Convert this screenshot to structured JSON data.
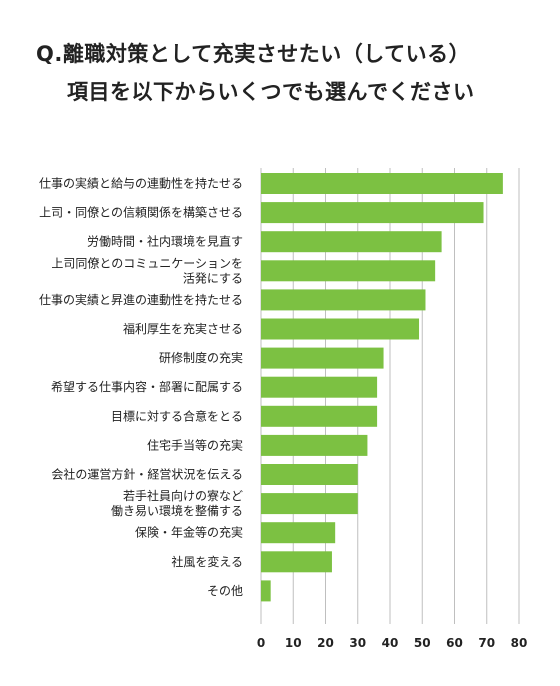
{
  "title": {
    "line1": "Q.離職対策として充実させたい（している）",
    "line2": "項目を以下からいくつでも選んでください"
  },
  "chart_data": {
    "type": "bar",
    "orientation": "horizontal",
    "categories": [
      [
        "仕事の実績と給与の連動性を持たせる"
      ],
      [
        "上司・同僚との信頼関係を構築させる"
      ],
      [
        "労働時間・社内環境を見直す"
      ],
      [
        "上司同僚とのコミュニケーションを",
        "活発にする"
      ],
      [
        "仕事の実績と昇進の連動性を持たせる"
      ],
      [
        "福利厚生を充実させる"
      ],
      [
        "研修制度の充実"
      ],
      [
        "希望する仕事内容・部署に配属する"
      ],
      [
        "目標に対する合意をとる"
      ],
      [
        "住宅手当等の充実"
      ],
      [
        "会社の運営方針・経営状況を伝える"
      ],
      [
        "若手社員向けの寮など",
        "働き易い環境を整備する"
      ],
      [
        "保険・年金等の充実"
      ],
      [
        "社風を変える"
      ],
      [
        "その他"
      ]
    ],
    "values": [
      75,
      69,
      56,
      54,
      51,
      49,
      38,
      36,
      36,
      33,
      30,
      30,
      23,
      22,
      3
    ],
    "xlim": [
      0,
      80
    ],
    "xticks": [
      "0",
      "10",
      "20",
      "30",
      "40",
      "50",
      "60",
      "70",
      "80"
    ],
    "grid": true,
    "bar_color": "#7cc142",
    "grid_color": "#bfbfbf"
  }
}
